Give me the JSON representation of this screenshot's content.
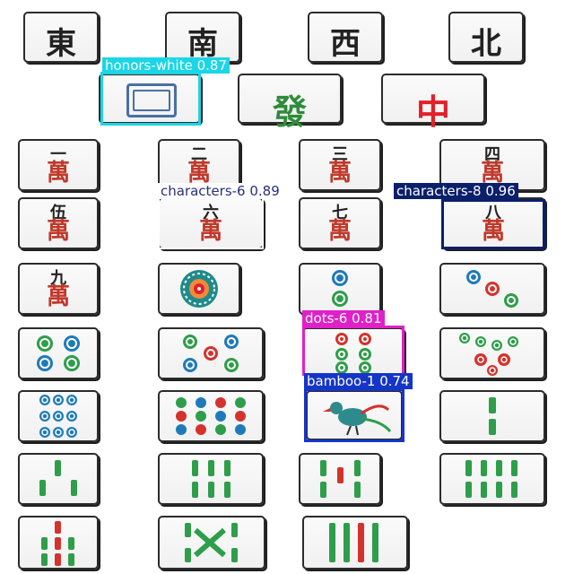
{
  "tiles": {
    "wind_east": "東",
    "wind_south": "南",
    "wind_west": "西",
    "wind_north": "北",
    "green_dragon": "發",
    "red_dragon": "中",
    "wan": "萬",
    "char_1": "一",
    "char_2": "二",
    "char_3": "三",
    "char_4": "四",
    "char_5": "伍",
    "char_6": "六",
    "char_7": "七",
    "char_8": "八",
    "char_9": "九"
  },
  "detections": [
    {
      "label": "honors-white 0.87",
      "color": "#1ad6e6"
    },
    {
      "label": "characters-6 0.89",
      "color": "#ffffff"
    },
    {
      "label": "characters-8 0.96",
      "color": "#0b1f6b"
    },
    {
      "label": "dots-6 0.81",
      "color": "#e020c8"
    },
    {
      "label": "bamboo-1 0.74",
      "color": "#1535c8"
    }
  ]
}
